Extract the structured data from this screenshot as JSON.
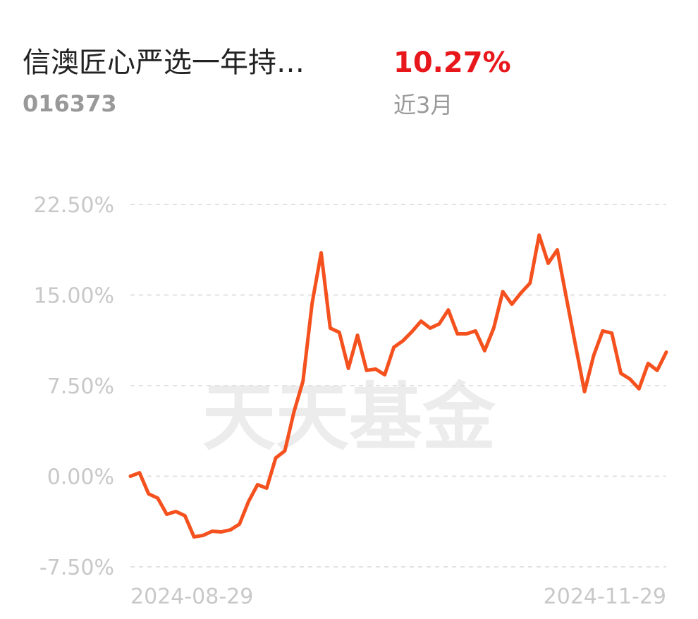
{
  "chart_data": {
    "type": "line",
    "title": "信澳匠心严选一年持…",
    "subtitle": "016373",
    "return_value": "10.27%",
    "period": "近3月",
    "watermark": "天天基金",
    "color": "#f4511e",
    "grid": true,
    "categories": [
      "2024-08-29",
      null,
      null,
      null,
      null,
      null,
      null,
      null,
      null,
      null,
      null,
      null,
      null,
      null,
      null,
      null,
      null,
      null,
      null,
      null,
      null,
      null,
      null,
      null,
      null,
      null,
      null,
      null,
      null,
      null,
      null,
      null,
      null,
      null,
      null,
      null,
      null,
      null,
      null,
      null,
      null,
      null,
      null,
      null,
      null,
      null,
      null,
      null,
      null,
      null,
      null,
      null,
      null,
      null,
      null,
      null,
      null,
      null,
      null,
      "2024-11-29"
    ],
    "values": [
      0.0,
      0.29,
      -1.46,
      -1.81,
      -3.15,
      -2.92,
      -3.27,
      -5.02,
      -4.9,
      -4.55,
      -4.61,
      -4.44,
      -3.97,
      -2.1,
      -0.7,
      -0.99,
      1.52,
      2.1,
      5.31,
      7.88,
      14.3,
      18.5,
      12.26,
      11.91,
      8.93,
      11.67,
      8.76,
      8.87,
      8.4,
      10.68,
      11.21,
      11.97,
      12.84,
      12.26,
      12.61,
      13.77,
      11.79,
      11.79,
      12.03,
      10.39,
      12.26,
      15.29,
      14.24,
      15.18,
      15.99,
      19.96,
      17.63,
      18.74,
      14.77,
      10.86,
      7.0,
      9.98,
      12.03,
      11.85,
      8.52,
      8.05,
      7.24,
      9.34,
      8.76,
      10.27
    ],
    "ylim": [
      -7.5,
      22.5
    ],
    "yticks": [
      {
        "value": 22.5,
        "label": "22.50%"
      },
      {
        "value": 15,
        "label": "15.00%"
      },
      {
        "value": 7.5,
        "label": "7.50%"
      },
      {
        "value": 0,
        "label": "0.00%"
      },
      {
        "value": -7.5,
        "label": "-7.50%"
      }
    ]
  }
}
